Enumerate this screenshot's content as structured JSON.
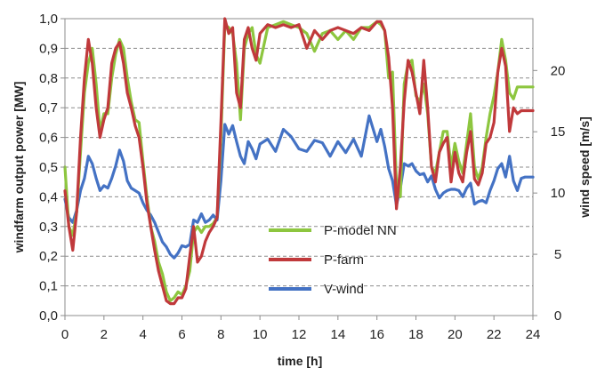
{
  "chart_data": {
    "type": "line",
    "xlabel": "time [h]",
    "ylabel_left": "windfarm output power [MW]",
    "ylabel_right": "wind speed [m/s]",
    "xlim": [
      0,
      24
    ],
    "ylim_left": [
      0,
      1
    ],
    "ylim_right": [
      0,
      24.23
    ],
    "x_ticks": [
      0,
      2,
      4,
      6,
      8,
      10,
      12,
      14,
      16,
      18,
      20,
      22,
      24
    ],
    "x_tick_labels": [
      "0",
      "2",
      "4",
      "6",
      "8",
      "10",
      "12",
      "14",
      "16",
      "18",
      "20",
      "22",
      "24"
    ],
    "y_left_ticks": [
      0,
      0.1,
      0.2,
      0.3,
      0.4,
      0.5,
      0.6,
      0.7,
      0.8,
      0.9,
      1.0
    ],
    "y_left_tick_labels": [
      "0,0",
      "0,1",
      "0,2",
      "0,3",
      "0,4",
      "0,5",
      "0,6",
      "0,7",
      "0,8",
      "0,9",
      "1,0"
    ],
    "y_right_ticks": [
      0,
      5,
      10,
      15,
      20
    ],
    "y_right_tick_labels": [
      "0",
      "5",
      "10",
      "15",
      "20"
    ],
    "grid": "horizontal dashed",
    "legend_position": "center",
    "series": [
      {
        "name": "P-model NN",
        "axis": "left",
        "color": "#8dc63f",
        "x": [
          0,
          0.2,
          0.4,
          0.6,
          0.8,
          1.0,
          1.2,
          1.4,
          1.6,
          1.8,
          2.0,
          2.2,
          2.4,
          2.6,
          2.8,
          3.0,
          3.2,
          3.4,
          3.6,
          3.8,
          4.0,
          4.2,
          4.4,
          4.6,
          4.8,
          5.0,
          5.2,
          5.4,
          5.6,
          5.8,
          6.0,
          6.2,
          6.4,
          6.6,
          6.8,
          7.0,
          7.2,
          7.4,
          7.6,
          7.8,
          8.0,
          8.2,
          8.4,
          8.6,
          8.8,
          9.0,
          9.2,
          9.4,
          9.6,
          9.8,
          10.0,
          10.4,
          10.8,
          11.2,
          11.6,
          12.0,
          12.4,
          12.8,
          13.2,
          13.6,
          14.0,
          14.4,
          14.8,
          15.2,
          15.6,
          16.0,
          16.2,
          16.4,
          16.6,
          16.8,
          17.0,
          17.2,
          17.4,
          17.6,
          17.8,
          18.0,
          18.2,
          18.4,
          18.6,
          18.8,
          19.0,
          19.2,
          19.4,
          19.6,
          19.8,
          20.0,
          20.2,
          20.4,
          20.6,
          20.8,
          21.0,
          21.2,
          21.4,
          21.6,
          21.8,
          22.0,
          22.2,
          22.4,
          22.6,
          22.8,
          23.0,
          23.2,
          23.4,
          23.6,
          23.8,
          24.0
        ],
        "values": [
          0.5,
          0.3,
          0.27,
          0.35,
          0.55,
          0.75,
          0.85,
          0.9,
          0.78,
          0.62,
          0.68,
          0.68,
          0.8,
          0.88,
          0.93,
          0.9,
          0.8,
          0.72,
          0.66,
          0.65,
          0.52,
          0.4,
          0.3,
          0.25,
          0.18,
          0.14,
          0.08,
          0.05,
          0.06,
          0.08,
          0.07,
          0.1,
          0.15,
          0.28,
          0.3,
          0.28,
          0.3,
          0.3,
          0.31,
          0.33,
          0.6,
          0.98,
          0.97,
          0.95,
          0.85,
          0.66,
          0.9,
          0.95,
          0.97,
          0.88,
          0.85,
          0.97,
          0.98,
          0.99,
          0.98,
          0.97,
          0.95,
          0.89,
          0.95,
          0.96,
          0.93,
          0.96,
          0.93,
          0.97,
          0.97,
          0.99,
          0.98,
          0.96,
          0.8,
          0.82,
          0.44,
          0.4,
          0.78,
          0.85,
          0.86,
          0.74,
          0.72,
          0.78,
          0.68,
          0.5,
          0.48,
          0.55,
          0.62,
          0.62,
          0.5,
          0.58,
          0.52,
          0.48,
          0.58,
          0.68,
          0.5,
          0.46,
          0.5,
          0.6,
          0.68,
          0.74,
          0.82,
          0.93,
          0.86,
          0.75,
          0.73,
          0.77,
          0.77,
          0.77,
          0.77,
          0.77
        ]
      },
      {
        "name": "P-farm",
        "axis": "left",
        "color": "#c0393b",
        "x": [
          0,
          0.2,
          0.4,
          0.6,
          0.8,
          1.0,
          1.2,
          1.4,
          1.6,
          1.8,
          2.0,
          2.2,
          2.4,
          2.6,
          2.8,
          3.0,
          3.2,
          3.4,
          3.6,
          3.8,
          4.0,
          4.2,
          4.4,
          4.6,
          4.8,
          5.0,
          5.2,
          5.4,
          5.6,
          5.8,
          6.0,
          6.2,
          6.4,
          6.6,
          6.8,
          7.0,
          7.2,
          7.4,
          7.6,
          7.8,
          8.0,
          8.2,
          8.4,
          8.6,
          8.8,
          9.0,
          9.2,
          9.4,
          9.6,
          9.8,
          10.0,
          10.4,
          10.8,
          11.2,
          11.6,
          12.0,
          12.4,
          12.8,
          13.2,
          13.6,
          14.0,
          14.4,
          14.8,
          15.2,
          15.6,
          16.0,
          16.2,
          16.4,
          16.6,
          16.8,
          17.0,
          17.2,
          17.4,
          17.6,
          17.8,
          18.0,
          18.2,
          18.4,
          18.6,
          18.8,
          19.0,
          19.2,
          19.4,
          19.6,
          19.8,
          20.0,
          20.2,
          20.4,
          20.6,
          20.8,
          21.0,
          21.2,
          21.4,
          21.6,
          21.8,
          22.0,
          22.2,
          22.4,
          22.6,
          22.8,
          23.0,
          23.2,
          23.4,
          23.6,
          23.8,
          24.0
        ],
        "values": [
          0.42,
          0.3,
          0.22,
          0.35,
          0.6,
          0.8,
          0.93,
          0.85,
          0.7,
          0.6,
          0.66,
          0.7,
          0.85,
          0.9,
          0.92,
          0.85,
          0.75,
          0.7,
          0.64,
          0.6,
          0.5,
          0.38,
          0.3,
          0.22,
          0.15,
          0.1,
          0.05,
          0.04,
          0.04,
          0.06,
          0.06,
          0.09,
          0.2,
          0.3,
          0.18,
          0.2,
          0.25,
          0.28,
          0.3,
          0.33,
          0.65,
          1.0,
          0.95,
          0.97,
          0.75,
          0.7,
          0.93,
          0.97,
          0.9,
          0.86,
          0.95,
          0.98,
          0.97,
          0.98,
          0.97,
          0.98,
          0.9,
          0.96,
          0.93,
          0.96,
          0.97,
          0.96,
          0.95,
          0.97,
          0.96,
          0.99,
          0.99,
          0.96,
          0.87,
          0.7,
          0.36,
          0.5,
          0.72,
          0.86,
          0.82,
          0.75,
          0.68,
          0.86,
          0.7,
          0.5,
          0.45,
          0.55,
          0.58,
          0.6,
          0.45,
          0.55,
          0.48,
          0.45,
          0.55,
          0.62,
          0.46,
          0.44,
          0.48,
          0.58,
          0.6,
          0.65,
          0.82,
          0.9,
          0.84,
          0.62,
          0.7,
          0.68,
          0.69,
          0.69,
          0.69,
          0.69
        ]
      },
      {
        "name": "V-wind",
        "axis": "right",
        "color": "#4472c4",
        "x": [
          0,
          0.2,
          0.4,
          0.6,
          0.8,
          1.0,
          1.2,
          1.4,
          1.6,
          1.8,
          2.0,
          2.2,
          2.4,
          2.6,
          2.8,
          3.0,
          3.2,
          3.4,
          3.6,
          3.8,
          4.0,
          4.2,
          4.4,
          4.6,
          4.8,
          5.0,
          5.2,
          5.4,
          5.6,
          5.8,
          6.0,
          6.2,
          6.4,
          6.6,
          6.8,
          7.0,
          7.2,
          7.4,
          7.6,
          7.8,
          8.0,
          8.2,
          8.4,
          8.6,
          8.8,
          9.0,
          9.2,
          9.4,
          9.6,
          9.8,
          10.0,
          10.4,
          10.8,
          11.2,
          11.6,
          12.0,
          12.4,
          12.8,
          13.2,
          13.6,
          14.0,
          14.4,
          14.8,
          15.2,
          15.6,
          16.0,
          16.2,
          16.4,
          16.6,
          16.8,
          17.0,
          17.2,
          17.4,
          17.6,
          17.8,
          18.0,
          18.2,
          18.4,
          18.6,
          18.8,
          19.0,
          19.2,
          19.4,
          19.6,
          19.8,
          20.0,
          20.2,
          20.4,
          20.6,
          20.8,
          21.0,
          21.2,
          21.4,
          21.6,
          21.8,
          22.0,
          22.2,
          22.4,
          22.6,
          22.8,
          23.0,
          23.2,
          23.4,
          23.6,
          23.8,
          24.0
        ],
        "values": [
          9.5,
          8.0,
          7.6,
          8.6,
          10.2,
          11.2,
          13.0,
          12.4,
          11.2,
          10.2,
          10.6,
          10.4,
          11.2,
          12.2,
          13.5,
          12.6,
          11.0,
          10.4,
          10.2,
          10.0,
          9.2,
          8.6,
          8.2,
          7.6,
          6.8,
          6.0,
          5.6,
          5.0,
          4.7,
          5.1,
          5.7,
          5.6,
          5.8,
          7.8,
          7.6,
          8.3,
          7.6,
          7.8,
          8.2,
          7.8,
          11.0,
          15.6,
          14.8,
          15.5,
          14.2,
          13.0,
          12.4,
          14.2,
          13.6,
          12.8,
          14.0,
          14.4,
          13.4,
          15.2,
          14.6,
          13.6,
          13.4,
          14.3,
          14.1,
          13.0,
          14.2,
          13.3,
          14.4,
          13.0,
          16.3,
          14.2,
          15.2,
          13.8,
          12.0,
          11.0,
          9.0,
          10.4,
          12.4,
          12.2,
          12.4,
          11.8,
          11.5,
          11.6,
          10.9,
          11.4,
          10.3,
          9.6,
          10.0,
          10.2,
          10.3,
          10.3,
          10.2,
          9.7,
          10.4,
          10.8,
          9.1,
          9.3,
          9.4,
          9.2,
          10.2,
          11.0,
          12.0,
          12.4,
          11.3,
          13.0,
          11.0,
          10.2,
          11.2,
          11.3,
          11.3,
          11.3
        ]
      }
    ]
  }
}
